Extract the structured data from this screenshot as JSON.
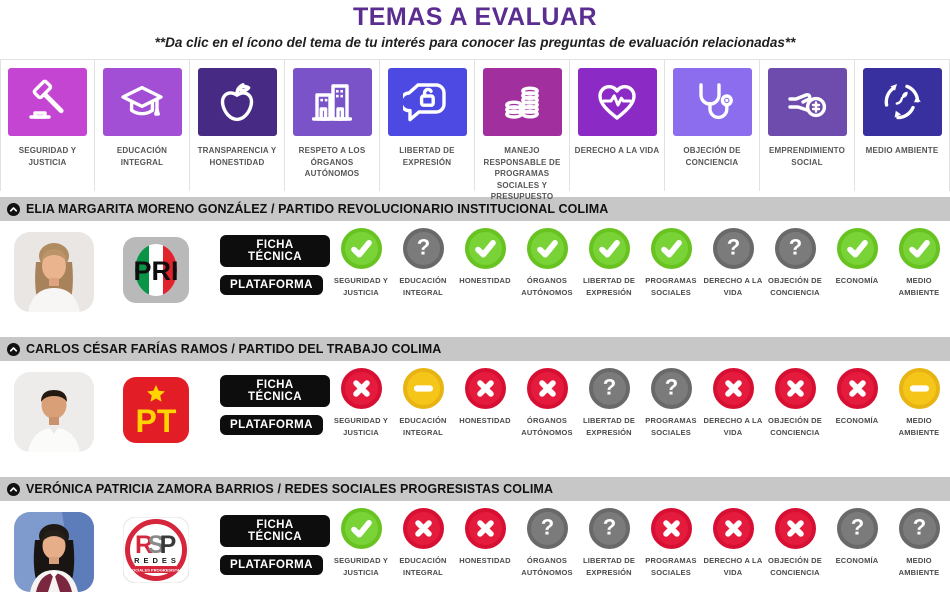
{
  "page": {
    "title": "TEMAS A EVALUAR",
    "subtitle": "**Da clic en el ícono del tema de tu interés para conocer las preguntas de evaluación relacionadas**"
  },
  "topics": [
    {
      "label": "SEGURIDAD Y JUSTICIA",
      "icon": "gavel-icon",
      "color": "#c545d3"
    },
    {
      "label": "EDUCACIÓN INTEGRAL",
      "icon": "graduation-cap-icon",
      "color": "#a24fd6"
    },
    {
      "label": "TRANSPARENCIA Y HONESTIDAD",
      "icon": "apple-icon",
      "color": "#472a84"
    },
    {
      "label": "RESPETO A LOS ÓRGANOS AUTÓNOMOS",
      "icon": "buildings-icon",
      "color": "#7a53c9"
    },
    {
      "label": "LIBERTAD DE EXPRESIÓN",
      "icon": "speech-lock-icon",
      "color": "#4d49e3"
    },
    {
      "label": "MANEJO RESPONSABLE DE PROGRAMAS SOCIALES Y PRESUPUESTO",
      "icon": "coins-icon",
      "color": "#a12f9e"
    },
    {
      "label": "DERECHO A LA VIDA",
      "icon": "heart-pulse-icon",
      "color": "#8c2ac5"
    },
    {
      "label": "OBJECIÓN DE CONCIENCIA",
      "icon": "stethoscope-icon",
      "color": "#8b6ded"
    },
    {
      "label": "EMPRENDIMIENTO SOCIAL",
      "icon": "hand-coin-icon",
      "color": "#6e4cae"
    },
    {
      "label": "MEDIO AMBIENTE",
      "icon": "recycle-icon",
      "color": "#38309f"
    }
  ],
  "result_labels": [
    "SEGURIDAD Y JUSTICIA",
    "EDUCACIÓN INTEGRAL",
    "HONESTIDAD",
    "ÓRGANOS AUTÓNOMOS",
    "LIBERTAD DE EXPRESIÓN",
    "PROGRAMAS SOCIALES",
    "DERECHO A LA VIDA",
    "OBJECIÓN DE CONCIENCIA",
    "ECONOMÍA",
    "MEDIO AMBIENTE"
  ],
  "buttons": {
    "ficha": "FICHA TÉCNICA",
    "plataforma": "PLATAFORMA"
  },
  "candidates": [
    {
      "name": "ELIA MARGARITA MORENO GONZÁLEZ / PARTIDO REVOLUCIONARIO INSTITUCIONAL COLIMA",
      "party": "PRI",
      "results": [
        "check",
        "question",
        "check",
        "check",
        "check",
        "check",
        "question",
        "question",
        "check",
        "check"
      ]
    },
    {
      "name": "CARLOS CÉSAR FARÍAS RAMOS / PARTIDO DEL TRABAJO COLIMA",
      "party": "PT",
      "results": [
        "cross",
        "dash",
        "cross",
        "cross",
        "question",
        "question",
        "cross",
        "cross",
        "cross",
        "dash"
      ]
    },
    {
      "name": "VERÓNICA PATRICIA ZAMORA BARRIOS / REDES SOCIALES PROGRESISTAS COLIMA",
      "party": "RSP",
      "results": [
        "check",
        "cross",
        "cross",
        "question",
        "question",
        "cross",
        "cross",
        "cross",
        "question",
        "question"
      ]
    }
  ],
  "status_colors": {
    "check": {
      "ring": "#68c321",
      "fill": "#79d337"
    },
    "cross": {
      "ring": "#d60f33",
      "fill": "#e51b3d"
    },
    "question": {
      "ring": "#696969",
      "fill": "#7b7b7b"
    },
    "dash": {
      "ring": "#e8b413",
      "fill": "#f6c51a"
    }
  },
  "party_colors": {
    "pri_green": "#0a9447",
    "pri_red": "#e1232d",
    "pri_gray": "#b9b9b9",
    "pt_red": "#e31d25",
    "pt_yellow": "#ffd400",
    "rsp_red": "#d5263b"
  }
}
